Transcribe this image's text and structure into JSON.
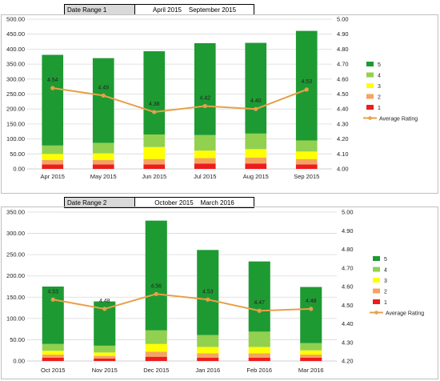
{
  "headers": [
    {
      "label": "Date Range 1",
      "value": "April 2015    September 2015"
    },
    {
      "label": "Date Range 2",
      "value": "October 2015    March 2016"
    }
  ],
  "colors": {
    "5": "#1e9a33",
    "4": "#92d050",
    "3": "#ffff00",
    "2": "#f4a460",
    "1": "#ee1c1c",
    "line": "#e8a04a",
    "grid": "#d9d9d9"
  },
  "chart_data": [
    {
      "type": "bar",
      "stacked": true,
      "categories": [
        "Apr 2015",
        "May 2015",
        "Jun 2015",
        "Jul 2015",
        "Aug 2015",
        "Sep 2015"
      ],
      "series": [
        {
          "name": "1",
          "values": [
            15,
            15,
            15,
            18,
            18,
            15
          ]
        },
        {
          "name": "2",
          "values": [
            15,
            15,
            18,
            18,
            20,
            18
          ]
        },
        {
          "name": "3",
          "values": [
            20,
            22,
            40,
            25,
            28,
            25
          ]
        },
        {
          "name": "4",
          "values": [
            28,
            35,
            42,
            52,
            52,
            37
          ]
        },
        {
          "name": "5",
          "values": [
            303,
            283,
            278,
            307,
            303,
            366
          ]
        }
      ],
      "line": {
        "name": "Average Rating",
        "values": [
          4.54,
          4.49,
          4.38,
          4.42,
          4.4,
          4.53
        ],
        "labels": [
          "4.54",
          "4.49",
          "4.38",
          "4.42",
          "4.40",
          "4.53"
        ]
      },
      "ylim": [
        0,
        500
      ],
      "yticks": [
        "0.00",
        "50.00",
        "100.00",
        "150.00",
        "200.00",
        "250.00",
        "300.00",
        "350.00",
        "400.00",
        "450.00",
        "500.00"
      ],
      "y2lim": [
        4.0,
        5.0
      ],
      "y2ticks": [
        "4.00",
        "4.10",
        "4.20",
        "4.30",
        "4.40",
        "4.50",
        "4.60",
        "4.70",
        "4.80",
        "4.90",
        "5.00"
      ],
      "grid": true,
      "legend": "right"
    },
    {
      "type": "bar",
      "stacked": true,
      "categories": [
        "Oct 2015",
        "Nov 2015",
        "Dec 2015",
        "Jan 2016",
        "Feb 2016",
        "Mar 2016"
      ],
      "series": [
        {
          "name": "1",
          "values": [
            8,
            6,
            10,
            8,
            8,
            8
          ]
        },
        {
          "name": "2",
          "values": [
            7,
            6,
            12,
            10,
            10,
            7
          ]
        },
        {
          "name": "3",
          "values": [
            9,
            8,
            18,
            15,
            15,
            10
          ]
        },
        {
          "name": "4",
          "values": [
            16,
            16,
            32,
            28,
            36,
            17
          ]
        },
        {
          "name": "5",
          "values": [
            135,
            104,
            258,
            200,
            165,
            132
          ]
        }
      ],
      "line": {
        "name": "Average Rating",
        "values": [
          4.53,
          4.48,
          4.56,
          4.53,
          4.47,
          4.48
        ],
        "labels": [
          "4.53",
          "4.48",
          "4.56",
          "4.53",
          "4.47",
          "4.48"
        ]
      },
      "ylim": [
        0,
        350
      ],
      "yticks": [
        "0.00",
        "50.00",
        "100.00",
        "150.00",
        "200.00",
        "250.00",
        "300.00",
        "350.00"
      ],
      "y2lim": [
        4.2,
        5.0
      ],
      "y2ticks": [
        "4.20",
        "4.30",
        "4.40",
        "4.50",
        "4.60",
        "4.70",
        "4.80",
        "4.90",
        "5.00"
      ],
      "grid": true,
      "legend": "right"
    }
  ]
}
